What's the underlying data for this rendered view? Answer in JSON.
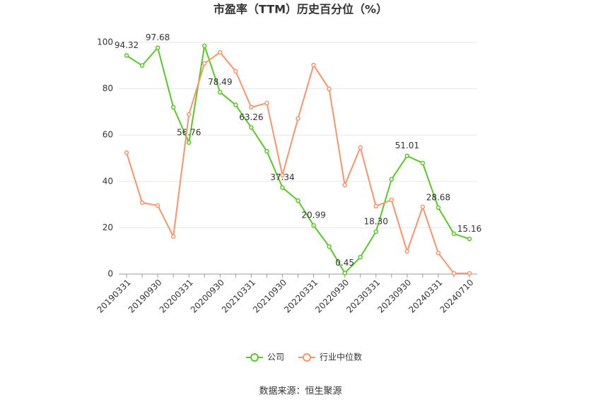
{
  "chart_data": {
    "type": "line",
    "title": "市盈率（TTM）历史百分位（%）",
    "categories": [
      "20190331",
      null,
      "20190930",
      null,
      "20200331",
      null,
      "20200930",
      null,
      "20210331",
      null,
      "20210930",
      null,
      "20220331",
      null,
      "20220930",
      null,
      "20230331",
      null,
      "20230930",
      null,
      "20240331",
      null,
      "20240710"
    ],
    "series": [
      {
        "name": "公司",
        "color": "#5ac726",
        "values": [
          94.32,
          90,
          97.68,
          72,
          56.76,
          98.5,
          78.49,
          73,
          63.26,
          53,
          37.34,
          31.7,
          20.99,
          11.9,
          0.45,
          7.3,
          18.3,
          40.9,
          51.01,
          47.9,
          28.68,
          17.4,
          15.16
        ],
        "value_labels": [
          "94.32",
          null,
          "97.68",
          null,
          "56.76",
          null,
          "78.49",
          null,
          "63.26",
          null,
          "37.34",
          null,
          "20.99",
          null,
          "0.45",
          null,
          "18.30",
          null,
          "51.01",
          null,
          "28.68",
          null,
          "15.16"
        ]
      },
      {
        "name": "行业中位数",
        "color": "#f7946a",
        "values": [
          52.4,
          30.8,
          29.6,
          16.2,
          68.9,
          90.9,
          95.7,
          87.5,
          72,
          73.8,
          42.7,
          67.1,
          90.2,
          79.9,
          38.4,
          54.6,
          29.3,
          32,
          9.8,
          29,
          9.1,
          0.3,
          0.3
        ]
      }
    ],
    "ylim": [
      0,
      100
    ],
    "yticks": [
      0,
      20,
      40,
      60,
      80,
      100
    ],
    "grid": true,
    "legend": "bottom",
    "source": "数据来源：恒生聚源"
  }
}
